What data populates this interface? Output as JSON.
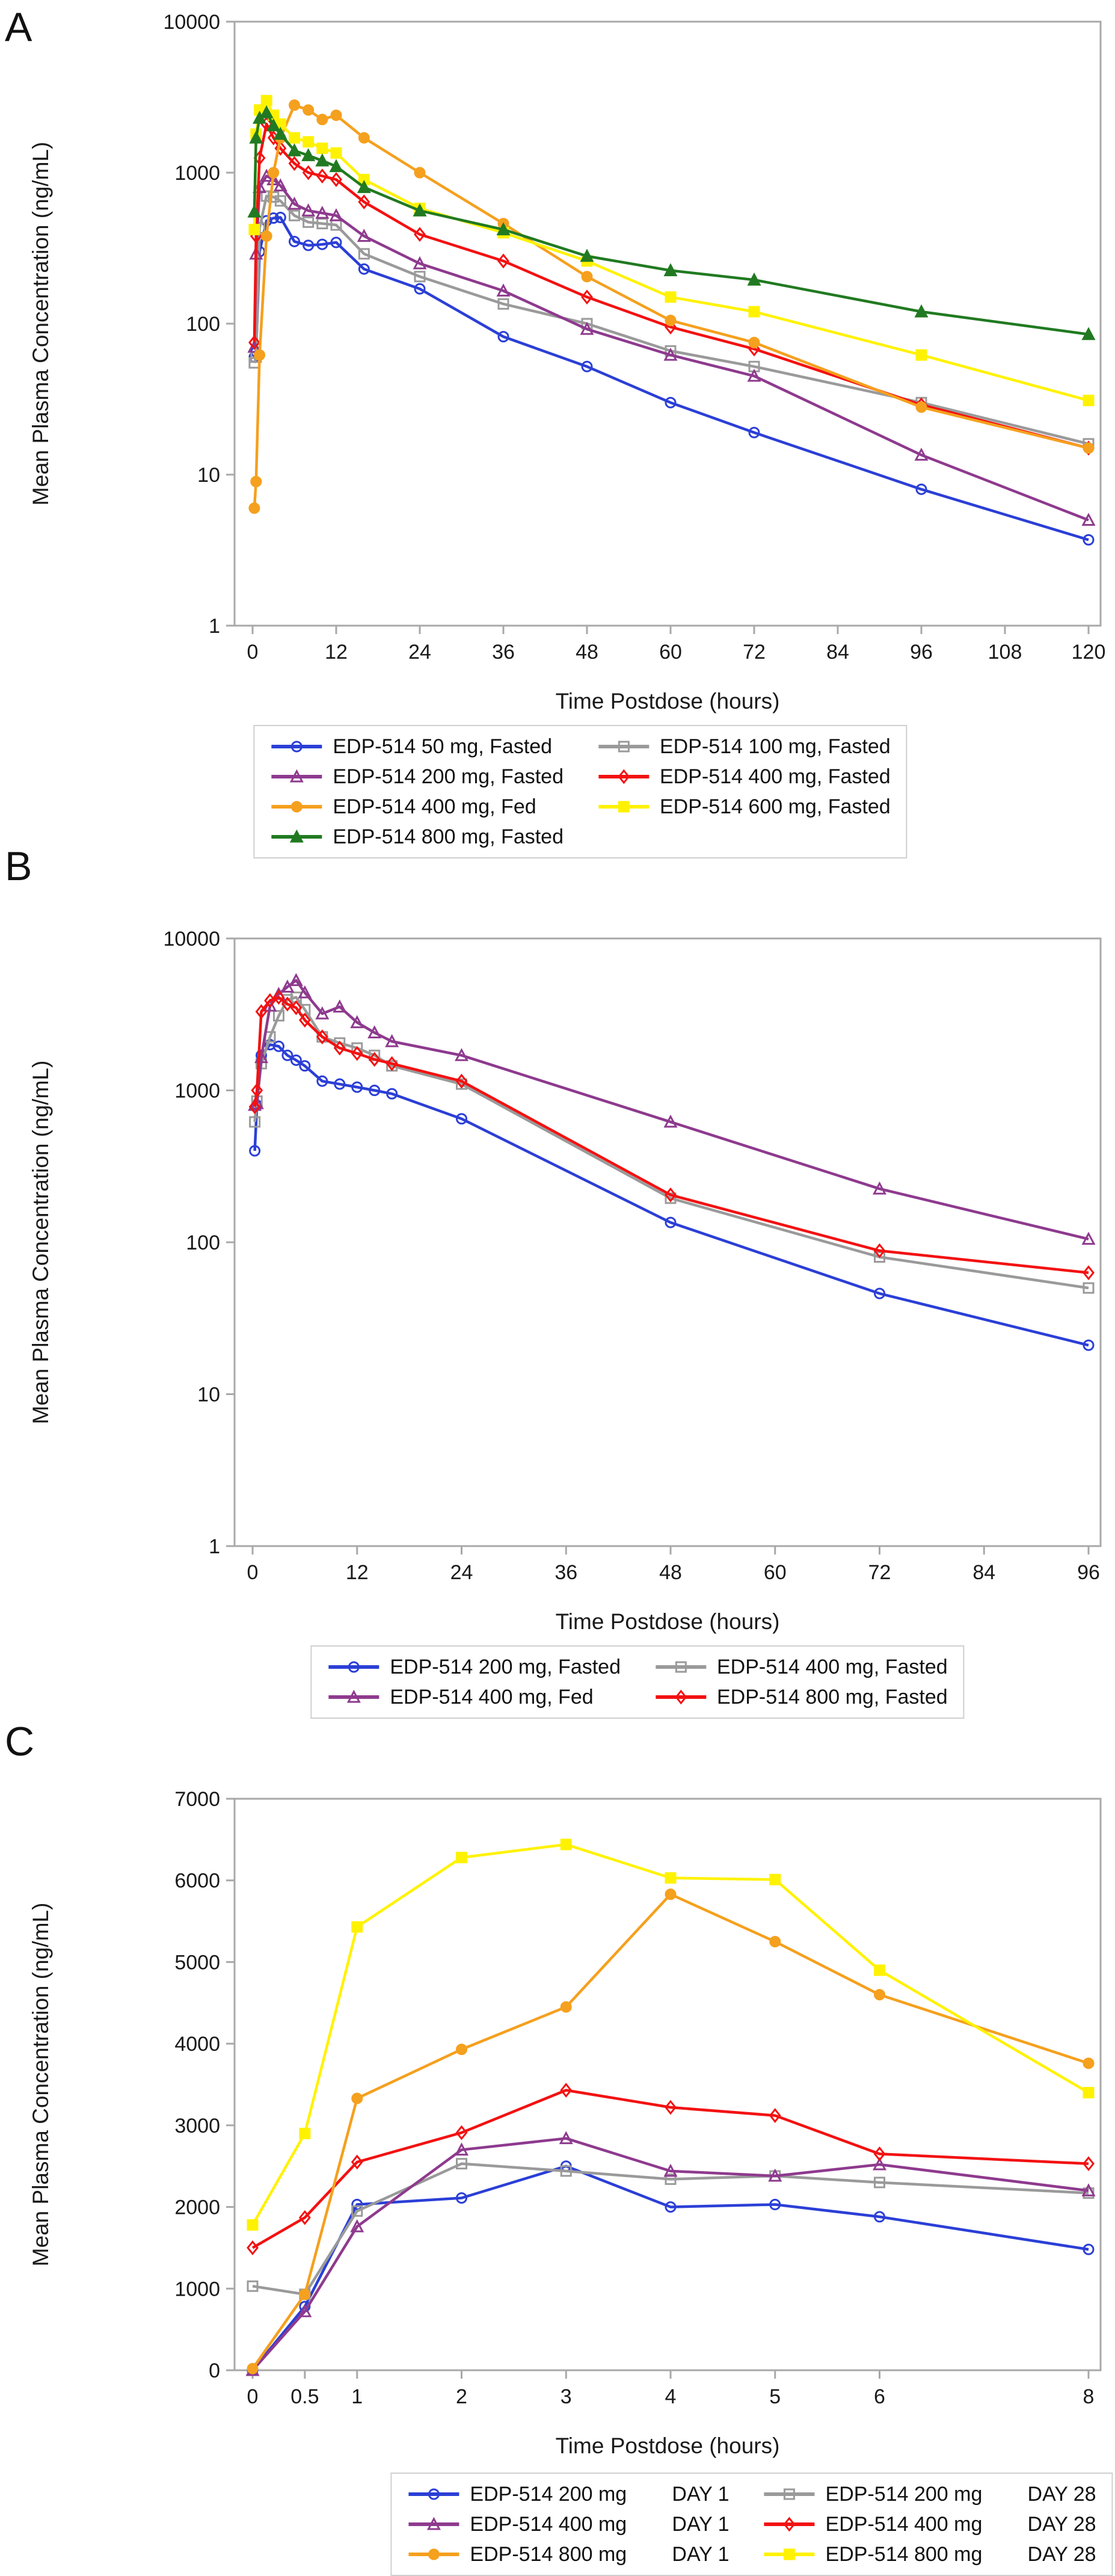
{
  "figure": {
    "x_axis_title": "Time Postdose (hours)",
    "y_axis_title": "Mean Plasma Concentration (ng/mL)",
    "frame_color": "#a8a8a8",
    "text_color": "#1a1a1a"
  },
  "chart_data": [
    {
      "type": "line",
      "panel_label": "A",
      "y_scale": "log",
      "ylim": [
        1,
        10000
      ],
      "yticks": [
        1,
        10,
        100,
        1000,
        10000
      ],
      "xlim": [
        0,
        120
      ],
      "xticks": [
        0,
        12,
        24,
        36,
        48,
        60,
        72,
        84,
        96,
        108,
        120
      ],
      "xlabel": "Time Postdose (hours)",
      "ylabel": "Mean Plasma Concentration (ng/mL)",
      "grid": false,
      "legend_position": "bottom",
      "x": [
        0.25,
        0.5,
        1,
        2,
        3,
        4,
        6,
        8,
        10,
        12,
        16,
        24,
        36,
        48,
        60,
        72,
        96,
        120
      ],
      "series": [
        {
          "name": "EDP-514 50 mg, Fasted",
          "color": "#2b3fd6",
          "marker": "circle",
          "marker_fill": "open",
          "values": [
            60,
            65,
            300,
            480,
            500,
            505,
            350,
            330,
            335,
            345,
            230,
            170,
            82,
            52,
            30,
            19,
            8,
            3.7
          ]
        },
        {
          "name": "EDP-514 100 mg, Fasted",
          "color": "#9a9a9a",
          "marker": "square",
          "marker_fill": "open",
          "values": [
            55,
            60,
            430,
            700,
            690,
            650,
            520,
            470,
            460,
            450,
            290,
            205,
            135,
            100,
            66,
            52,
            30,
            16
          ]
        },
        {
          "name": "EDP-514 200 mg, Fasted",
          "color": "#8e3a8e",
          "marker": "triangle",
          "marker_fill": "open",
          "values": [
            70,
            290,
            800,
            950,
            900,
            820,
            620,
            560,
            540,
            520,
            380,
            250,
            165,
            92,
            62,
            45,
            13.5,
            5
          ]
        },
        {
          "name": "EDP-514 400 mg, Fasted",
          "color": "#f31111",
          "marker": "diamond",
          "marker_fill": "open",
          "values": [
            75,
            380,
            1250,
            2100,
            1700,
            1450,
            1150,
            1000,
            950,
            900,
            640,
            390,
            260,
            150,
            95,
            68,
            29,
            15
          ]
        },
        {
          "name": "EDP-514 400 mg, Fed",
          "color": "#f5a01e",
          "marker": "circle",
          "marker_fill": "filled",
          "values": [
            6,
            9,
            62,
            380,
            1000,
            1700,
            2800,
            2600,
            2250,
            2400,
            1700,
            1000,
            460,
            205,
            105,
            75,
            28,
            15
          ]
        },
        {
          "name": "EDP-514 600 mg, Fasted",
          "color": "#fff200",
          "marker": "square",
          "marker_fill": "filled",
          "values": [
            420,
            1800,
            2600,
            3000,
            2400,
            2100,
            1700,
            1600,
            1450,
            1350,
            900,
            580,
            400,
            260,
            150,
            120,
            62,
            31
          ]
        },
        {
          "name": "EDP-514 800 mg, Fasted",
          "color": "#217a21",
          "marker": "triangle",
          "marker_fill": "filled",
          "values": [
            550,
            1700,
            2300,
            2500,
            2050,
            1800,
            1400,
            1300,
            1200,
            1100,
            800,
            560,
            420,
            280,
            225,
            195,
            120,
            85
          ]
        }
      ]
    },
    {
      "type": "line",
      "panel_label": "B",
      "y_scale": "log",
      "ylim": [
        1,
        10000
      ],
      "yticks": [
        1,
        10,
        100,
        1000,
        10000
      ],
      "xlim": [
        0,
        96
      ],
      "xticks": [
        0,
        12,
        24,
        36,
        48,
        60,
        72,
        84,
        96
      ],
      "xlabel": "Time Postdose (hours)",
      "ylabel": "Mean Plasma Concentration (ng/mL)",
      "grid": false,
      "legend_position": "bottom",
      "x": [
        0.25,
        0.5,
        1,
        2,
        3,
        4,
        5,
        6,
        8,
        10,
        12,
        14,
        16,
        24,
        48,
        72,
        96
      ],
      "series": [
        {
          "name": "EDP-514 200 mg, Fasted",
          "color": "#2b3fd6",
          "marker": "circle",
          "marker_fill": "open",
          "values": [
            400,
            800,
            1700,
            2000,
            1950,
            1700,
            1580,
            1450,
            1150,
            1100,
            1050,
            1000,
            950,
            650,
            135,
            46,
            21
          ]
        },
        {
          "name": "EDP-514 400 mg, Fasted",
          "color": "#9a9a9a",
          "marker": "square",
          "marker_fill": "open",
          "values": [
            620,
            850,
            1500,
            2250,
            3100,
            3950,
            4100,
            3400,
            2250,
            2050,
            1900,
            1700,
            1450,
            1100,
            195,
            80,
            50
          ]
        },
        {
          "name": "EDP-514 400 mg, Fed",
          "color": "#8e3a8e",
          "marker": "triangle",
          "marker_fill": "open",
          "values": [
            800,
            820,
            1650,
            3600,
            4300,
            4800,
            5300,
            4400,
            3200,
            3550,
            2800,
            2400,
            2100,
            1700,
            620,
            225,
            105
          ]
        },
        {
          "name": "EDP-514 800 mg, Fasted",
          "color": "#f31111",
          "marker": "diamond",
          "marker_fill": "open",
          "values": [
            780,
            1000,
            3300,
            3900,
            4100,
            3700,
            3500,
            2900,
            2250,
            1900,
            1750,
            1600,
            1500,
            1150,
            205,
            88,
            63
          ]
        }
      ]
    },
    {
      "type": "line",
      "panel_label": "C",
      "y_scale": "linear",
      "ylim": [
        0,
        7000
      ],
      "yticks": [
        0,
        1000,
        2000,
        3000,
        4000,
        5000,
        6000,
        7000
      ],
      "xlim": [
        0,
        8
      ],
      "xticks": [
        0,
        0.5,
        1,
        2,
        3,
        4,
        5,
        6,
        8
      ],
      "xlabel": "Time Postdose (hours)",
      "ylabel": "Mean Plasma Concentration (ng/mL)",
      "grid": false,
      "legend_position": "bottom",
      "x": [
        0,
        0.5,
        1,
        2,
        3,
        4,
        5,
        6,
        8
      ],
      "series": [
        {
          "name": "EDP-514 200 mg",
          "day": "DAY 1",
          "color": "#2b3fd6",
          "marker": "circle",
          "marker_fill": "open",
          "values": [
            0,
            780,
            2030,
            2110,
            2500,
            2000,
            2030,
            1880,
            1480
          ]
        },
        {
          "name": "EDP-514 200 mg",
          "day": "DAY 28",
          "color": "#9a9a9a",
          "marker": "square",
          "marker_fill": "open",
          "values": [
            1030,
            930,
            1950,
            2530,
            2440,
            2340,
            2380,
            2300,
            2170
          ]
        },
        {
          "name": "EDP-514 400 mg",
          "day": "DAY 1",
          "color": "#8e3a8e",
          "marker": "triangle",
          "marker_fill": "open",
          "values": [
            0,
            720,
            1760,
            2700,
            2840,
            2440,
            2380,
            2520,
            2200
          ]
        },
        {
          "name": "EDP-514 400 mg",
          "day": "DAY 28",
          "color": "#f31111",
          "marker": "diamond",
          "marker_fill": "open",
          "values": [
            1500,
            1870,
            2550,
            2910,
            3430,
            3220,
            3120,
            2650,
            2530
          ]
        },
        {
          "name": "EDP-514 800 mg",
          "day": "DAY 1",
          "color": "#f5a01e",
          "marker": "circle",
          "marker_fill": "filled",
          "values": [
            20,
            930,
            3330,
            3930,
            4450,
            5830,
            5250,
            4600,
            3760
          ]
        },
        {
          "name": "EDP-514 800 mg",
          "day": "DAY 28",
          "color": "#fff200",
          "marker": "square",
          "marker_fill": "filled",
          "values": [
            1780,
            2900,
            5430,
            6280,
            6440,
            6030,
            6010,
            4900,
            3400
          ]
        }
      ]
    }
  ]
}
